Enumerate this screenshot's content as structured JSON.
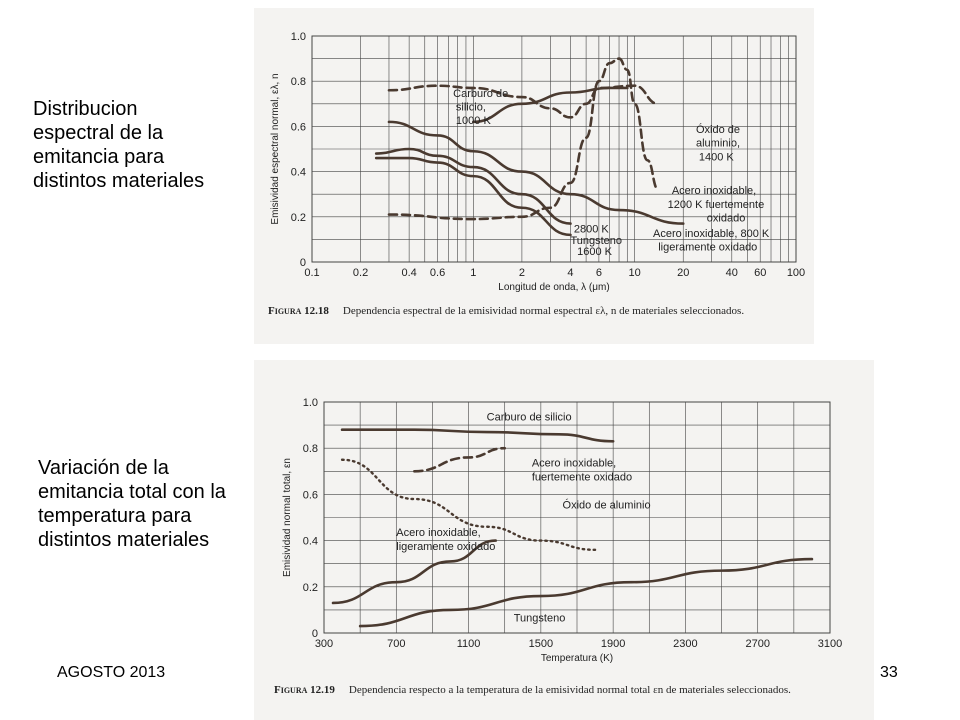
{
  "slide": {
    "caption_top": "Distribucion espectral de la emitancia para distintos materiales",
    "caption_bottom": "Variación de la emitancia total con la temperatura para distintos materiales",
    "footer_date": "AGOSTO 2013",
    "page_number": "33"
  },
  "figures": {
    "fig1": {
      "label": "Figura 12.18",
      "text": "Dependencia espectral de la emisividad normal espectral ελ, n de materiales seleccionados."
    },
    "fig2": {
      "label": "Figura 12.19",
      "text": "Dependencia respecto a la temperatura de la emisividad normal total εn de materiales seleccionados."
    }
  },
  "colors": {
    "curve": "#4a3a30",
    "grid": "#444444",
    "paper": "#f4f3f1"
  },
  "chart_data": [
    {
      "type": "line",
      "title": "",
      "xlabel": "Longitud de onda, λ (μm)",
      "ylabel": "Emisividad espectral normal, ελ, n",
      "x_scale": "log",
      "xlim": [
        0.1,
        100
      ],
      "ylim": [
        0,
        1.0
      ],
      "x_ticks": [
        0.1,
        0.2,
        0.4,
        0.6,
        1,
        2,
        4,
        6,
        10,
        20,
        40,
        60,
        100
      ],
      "x_tick_labels": [
        "0.1",
        "0.2",
        "0.4",
        "0.6",
        "1",
        "2",
        "4",
        "6",
        "10",
        "20",
        "40",
        "60",
        "100"
      ],
      "y_ticks": [
        0,
        0.2,
        0.4,
        0.6,
        0.8,
        1.0
      ],
      "y_tick_labels": [
        "0",
        "0.2",
        "0.4",
        "0.6",
        "0.8",
        "1.0"
      ],
      "grid": true,
      "series": [
        {
          "name": "Carburo de silicio, 1000 K",
          "style": "solid",
          "x": [
            1,
            2,
            4,
            7,
            9
          ],
          "y": [
            0.62,
            0.7,
            0.75,
            0.77,
            0.77
          ]
        },
        {
          "name": "Óxido de aluminio, 1400 K",
          "style": "dashed",
          "x": [
            0.3,
            0.6,
            1,
            2,
            3,
            4,
            5,
            6,
            10,
            14
          ],
          "y": [
            0.76,
            0.78,
            0.77,
            0.73,
            0.68,
            0.64,
            0.7,
            0.77,
            0.78,
            0.7
          ]
        },
        {
          "name": "Acero inoxidable, 1200 K fuertemente oxidado",
          "style": "dashed",
          "x": [
            0.3,
            1,
            2,
            3,
            4,
            5,
            6,
            7,
            8,
            9,
            10,
            12,
            14
          ],
          "y": [
            0.21,
            0.19,
            0.2,
            0.24,
            0.35,
            0.55,
            0.8,
            0.88,
            0.9,
            0.85,
            0.7,
            0.45,
            0.32
          ]
        },
        {
          "name": "Acero inoxidable, 800 K ligeramente oxidado",
          "style": "solid",
          "x": [
            0.3,
            0.6,
            1,
            2,
            4,
            8,
            20
          ],
          "y": [
            0.62,
            0.56,
            0.49,
            0.4,
            0.3,
            0.23,
            0.17
          ]
        },
        {
          "name": "Tungsteno, 2800 K",
          "style": "solid",
          "x": [
            0.25,
            0.4,
            0.6,
            1,
            2,
            4
          ],
          "y": [
            0.48,
            0.5,
            0.47,
            0.42,
            0.3,
            0.17
          ]
        },
        {
          "name": "Tungsteno, 1600 K",
          "style": "solid",
          "x": [
            0.25,
            0.4,
            0.6,
            1,
            2,
            4
          ],
          "y": [
            0.46,
            0.46,
            0.44,
            0.38,
            0.24,
            0.12
          ]
        }
      ],
      "annotations": [
        {
          "text": "Carburo de",
          "x": 0.75,
          "y": 0.73
        },
        {
          "text": "silicio,",
          "x": 0.78,
          "y": 0.67
        },
        {
          "text": "1000 K",
          "x": 0.78,
          "y": 0.61
        },
        {
          "text": "Óxido de",
          "x": 24,
          "y": 0.57
        },
        {
          "text": "aluminio,",
          "x": 24,
          "y": 0.51
        },
        {
          "text": "1400 K",
          "x": 25,
          "y": 0.45
        },
        {
          "text": "Acero inoxidable,",
          "x": 17,
          "y": 0.3
        },
        {
          "text": "1200 K fuertemente",
          "x": 16,
          "y": 0.24
        },
        {
          "text": "oxidado",
          "x": 28,
          "y": 0.18
        },
        {
          "text": "2800 K",
          "x": 4.2,
          "y": 0.13
        },
        {
          "text": "Tungsteno",
          "x": 4.0,
          "y": 0.08
        },
        {
          "text": "1600 K",
          "x": 4.4,
          "y": 0.03
        },
        {
          "text": "Acero inoxidable, 800 K",
          "x": 13,
          "y": 0.11
        },
        {
          "text": "ligeramente oxidado",
          "x": 14,
          "y": 0.05
        }
      ]
    },
    {
      "type": "line",
      "title": "",
      "xlabel": "Temperatura (K)",
      "ylabel": "Emisividad normal total, εn",
      "xlim": [
        300,
        3100
      ],
      "ylim": [
        0,
        1.0
      ],
      "x_ticks": [
        300,
        700,
        1100,
        1500,
        1900,
        2300,
        2700,
        3100
      ],
      "x_tick_labels": [
        "300",
        "700",
        "1100",
        "1500",
        "1900",
        "2300",
        "2700",
        "3100"
      ],
      "y_ticks": [
        0,
        0.2,
        0.4,
        0.6,
        0.8,
        1.0
      ],
      "y_tick_labels": [
        "0",
        "0.2",
        "0.4",
        "0.6",
        "0.8",
        "1.0"
      ],
      "grid": true,
      "series": [
        {
          "name": "Carburo de silicio",
          "style": "solid",
          "x": [
            400,
            800,
            1200,
            1600,
            1900
          ],
          "y": [
            0.88,
            0.88,
            0.87,
            0.86,
            0.83
          ]
        },
        {
          "name": "Acero inoxidable, fuertemente oxidado",
          "style": "dashed",
          "x": [
            800,
            1100,
            1300
          ],
          "y": [
            0.7,
            0.76,
            0.8
          ]
        },
        {
          "name": "Óxido de aluminio",
          "style": "dotted",
          "x": [
            400,
            800,
            1200,
            1500,
            1800
          ],
          "y": [
            0.75,
            0.58,
            0.46,
            0.4,
            0.36
          ]
        },
        {
          "name": "Acero inoxidable, ligeramente oxidado",
          "style": "solid",
          "x": [
            350,
            700,
            1000,
            1250
          ],
          "y": [
            0.13,
            0.22,
            0.31,
            0.4
          ]
        },
        {
          "name": "Tungsteno",
          "style": "solid",
          "x": [
            500,
            1000,
            1500,
            2000,
            2500,
            3000
          ],
          "y": [
            0.03,
            0.1,
            0.16,
            0.22,
            0.27,
            0.32
          ]
        }
      ],
      "annotations": [
        {
          "text": "Carburo de silicio",
          "x": 1200,
          "y": 0.92
        },
        {
          "text": "Acero inoxidable,",
          "x": 1450,
          "y": 0.72
        },
        {
          "text": "fuertemente oxidado",
          "x": 1450,
          "y": 0.66
        },
        {
          "text": "Óxido de aluminio",
          "x": 1620,
          "y": 0.54
        },
        {
          "text": "Acero inoxidable,",
          "x": 700,
          "y": 0.42
        },
        {
          "text": "ligeramente oxidado",
          "x": 700,
          "y": 0.36
        },
        {
          "text": "Tungsteno",
          "x": 1350,
          "y": 0.05
        }
      ]
    }
  ]
}
